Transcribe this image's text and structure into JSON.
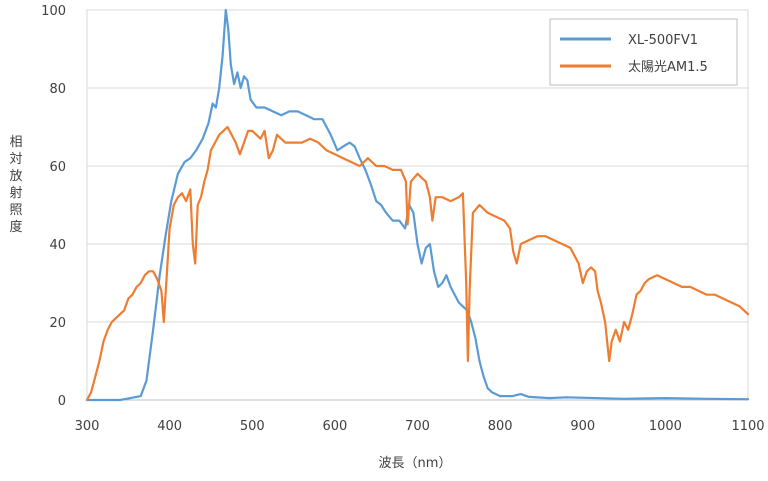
{
  "chart_data": {
    "type": "line",
    "xlabel": "波長（nm）",
    "ylabel": "相対放射照度",
    "xlim": [
      300,
      1100
    ],
    "ylim": [
      0,
      100
    ],
    "x_ticks": [
      300,
      400,
      500,
      600,
      700,
      800,
      900,
      1000,
      1100
    ],
    "y_ticks": [
      0,
      20,
      40,
      60,
      80,
      100
    ],
    "grid": "horizontal",
    "legend_position": "top-right",
    "series": [
      {
        "name": "XL-500FV1",
        "color": "#5b9bd5",
        "points": [
          [
            300,
            0
          ],
          [
            340,
            0
          ],
          [
            365,
            1
          ],
          [
            372,
            5
          ],
          [
            380,
            18
          ],
          [
            388,
            32
          ],
          [
            395,
            42
          ],
          [
            402,
            51
          ],
          [
            410,
            58
          ],
          [
            418,
            61
          ],
          [
            425,
            62
          ],
          [
            432,
            64
          ],
          [
            440,
            67
          ],
          [
            447,
            71
          ],
          [
            452,
            76
          ],
          [
            456,
            75
          ],
          [
            460,
            80
          ],
          [
            464,
            88
          ],
          [
            468,
            100
          ],
          [
            471,
            95
          ],
          [
            474,
            86
          ],
          [
            478,
            81
          ],
          [
            482,
            84
          ],
          [
            486,
            80
          ],
          [
            490,
            83
          ],
          [
            494,
            82
          ],
          [
            498,
            77
          ],
          [
            505,
            75
          ],
          [
            515,
            75
          ],
          [
            525,
            74
          ],
          [
            535,
            73
          ],
          [
            545,
            74
          ],
          [
            555,
            74
          ],
          [
            565,
            73
          ],
          [
            575,
            72
          ],
          [
            585,
            72
          ],
          [
            595,
            68
          ],
          [
            603,
            64
          ],
          [
            610,
            65
          ],
          [
            618,
            66
          ],
          [
            624,
            65
          ],
          [
            630,
            62
          ],
          [
            637,
            59
          ],
          [
            644,
            55
          ],
          [
            650,
            51
          ],
          [
            656,
            50
          ],
          [
            662,
            48
          ],
          [
            670,
            46
          ],
          [
            678,
            46
          ],
          [
            685,
            44
          ],
          [
            690,
            50
          ],
          [
            695,
            48
          ],
          [
            700,
            40
          ],
          [
            705,
            35
          ],
          [
            710,
            39
          ],
          [
            715,
            40
          ],
          [
            720,
            33
          ],
          [
            725,
            29
          ],
          [
            730,
            30
          ],
          [
            735,
            32
          ],
          [
            740,
            29
          ],
          [
            745,
            27
          ],
          [
            750,
            25
          ],
          [
            755,
            24
          ],
          [
            760,
            23
          ],
          [
            765,
            20
          ],
          [
            770,
            16
          ],
          [
            775,
            10
          ],
          [
            780,
            6
          ],
          [
            785,
            3
          ],
          [
            790,
            2
          ],
          [
            800,
            1
          ],
          [
            815,
            1
          ],
          [
            825,
            1.5
          ],
          [
            835,
            0.8
          ],
          [
            860,
            0.5
          ],
          [
            880,
            0.7
          ],
          [
            950,
            0.3
          ],
          [
            1000,
            0.5
          ],
          [
            1050,
            0.3
          ],
          [
            1100,
            0.2
          ]
        ]
      },
      {
        "name": "太陽光AM1.5",
        "color": "#ed7d31",
        "points": [
          [
            300,
            0
          ],
          [
            305,
            2
          ],
          [
            310,
            6
          ],
          [
            315,
            10
          ],
          [
            320,
            15
          ],
          [
            325,
            18
          ],
          [
            330,
            20
          ],
          [
            335,
            21
          ],
          [
            340,
            22
          ],
          [
            345,
            23
          ],
          [
            350,
            26
          ],
          [
            355,
            27
          ],
          [
            360,
            29
          ],
          [
            365,
            30
          ],
          [
            370,
            32
          ],
          [
            375,
            33
          ],
          [
            380,
            33
          ],
          [
            385,
            31
          ],
          [
            390,
            28
          ],
          [
            393,
            20
          ],
          [
            396,
            30
          ],
          [
            400,
            44
          ],
          [
            405,
            50
          ],
          [
            410,
            52
          ],
          [
            415,
            53
          ],
          [
            420,
            51
          ],
          [
            425,
            54
          ],
          [
            428,
            40
          ],
          [
            431,
            35
          ],
          [
            434,
            50
          ],
          [
            438,
            52
          ],
          [
            442,
            56
          ],
          [
            446,
            59
          ],
          [
            450,
            64
          ],
          [
            455,
            66
          ],
          [
            460,
            68
          ],
          [
            465,
            69
          ],
          [
            470,
            70
          ],
          [
            475,
            68
          ],
          [
            480,
            66
          ],
          [
            485,
            63
          ],
          [
            490,
            66
          ],
          [
            495,
            69
          ],
          [
            500,
            69
          ],
          [
            505,
            68
          ],
          [
            510,
            67
          ],
          [
            515,
            69
          ],
          [
            520,
            62
          ],
          [
            525,
            64
          ],
          [
            530,
            68
          ],
          [
            540,
            66
          ],
          [
            550,
            66
          ],
          [
            560,
            66
          ],
          [
            570,
            67
          ],
          [
            580,
            66
          ],
          [
            590,
            64
          ],
          [
            600,
            63
          ],
          [
            610,
            62
          ],
          [
            620,
            61
          ],
          [
            630,
            60
          ],
          [
            640,
            62
          ],
          [
            650,
            60
          ],
          [
            660,
            60
          ],
          [
            670,
            59
          ],
          [
            680,
            59
          ],
          [
            686,
            56
          ],
          [
            688,
            45
          ],
          [
            692,
            56
          ],
          [
            700,
            58
          ],
          [
            710,
            56
          ],
          [
            715,
            52
          ],
          [
            718,
            46
          ],
          [
            722,
            52
          ],
          [
            730,
            52
          ],
          [
            740,
            51
          ],
          [
            750,
            52
          ],
          [
            755,
            53
          ],
          [
            759,
            30
          ],
          [
            761,
            10
          ],
          [
            763,
            28
          ],
          [
            767,
            48
          ],
          [
            775,
            50
          ],
          [
            785,
            48
          ],
          [
            795,
            47
          ],
          [
            805,
            46
          ],
          [
            812,
            44
          ],
          [
            816,
            38
          ],
          [
            820,
            35
          ],
          [
            825,
            40
          ],
          [
            835,
            41
          ],
          [
            845,
            42
          ],
          [
            855,
            42
          ],
          [
            865,
            41
          ],
          [
            875,
            40
          ],
          [
            885,
            39
          ],
          [
            895,
            35
          ],
          [
            900,
            30
          ],
          [
            905,
            33
          ],
          [
            910,
            34
          ],
          [
            915,
            33
          ],
          [
            918,
            28
          ],
          [
            922,
            25
          ],
          [
            927,
            20
          ],
          [
            932,
            10
          ],
          [
            935,
            15
          ],
          [
            940,
            18
          ],
          [
            945,
            15
          ],
          [
            950,
            20
          ],
          [
            955,
            18
          ],
          [
            960,
            22
          ],
          [
            965,
            27
          ],
          [
            970,
            28
          ],
          [
            975,
            30
          ],
          [
            980,
            31
          ],
          [
            990,
            32
          ],
          [
            1000,
            31
          ],
          [
            1010,
            30
          ],
          [
            1020,
            29
          ],
          [
            1030,
            29
          ],
          [
            1040,
            28
          ],
          [
            1050,
            27
          ],
          [
            1060,
            27
          ],
          [
            1070,
            26
          ],
          [
            1080,
            25
          ],
          [
            1090,
            24
          ],
          [
            1100,
            22
          ]
        ]
      }
    ]
  }
}
